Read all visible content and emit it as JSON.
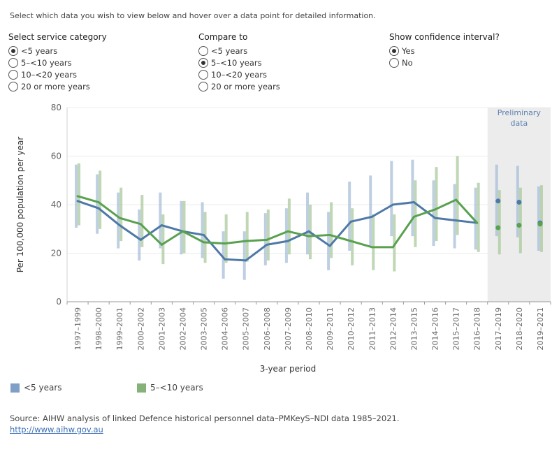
{
  "intro": "Select which data you wish to view below and hover over a data point for detailed information.",
  "controls": {
    "service": {
      "title": "Select service category",
      "options": [
        "<5 years",
        "5–<10 years",
        "10–<20 years",
        "20 or more years"
      ],
      "selected": 0
    },
    "compare": {
      "title": "Compare to",
      "options": [
        "<5 years",
        "5–<10 years",
        "10–<20 years",
        "20 or more years"
      ],
      "selected": 1
    },
    "ci": {
      "title": "Show confidence interval?",
      "options": [
        "Yes",
        "No"
      ],
      "selected": 0
    }
  },
  "legend": {
    "s1": "<5 years",
    "s2": "5–<10 years"
  },
  "source": "Source: AIHW analysis of linked Defence historical personnel data–PMKeyS–NDI data 1985–2021.",
  "link": "http://www.aihw.gov.au",
  "colors": {
    "blue": "#4e79a7",
    "green": "#59a14f",
    "blueCI": "#a8bfd8",
    "greenCI": "#a9c99b",
    "prelim": "#ececec"
  },
  "chart_data": {
    "type": "line",
    "xlabel": "3-year period",
    "ylabel": "Per 100,000 population per year",
    "ylim": [
      0,
      80
    ],
    "yticks": [
      0,
      20,
      40,
      60,
      80
    ],
    "preliminary_label": [
      "Preliminary",
      "data"
    ],
    "preliminary_from": "2017–2019",
    "categories": [
      "1997–1999",
      "1998–2000",
      "1999–2001",
      "2000–2002",
      "2001–2003",
      "2002–2004",
      "2003–2005",
      "2004–2006",
      "2005–2007",
      "2006–2008",
      "2007–2009",
      "2008–2010",
      "2009–2011",
      "2010–2012",
      "2011–2013",
      "2012–2014",
      "2013–2015",
      "2014–2016",
      "2015–2017",
      "2016–2018",
      "2017–2019",
      "2018–2020",
      "2019–2021"
    ],
    "series": [
      {
        "name": "<5 years",
        "color": "#4e79a7",
        "values": [
          41.5,
          38.5,
          31.5,
          25.5,
          31.5,
          29,
          27.5,
          17.5,
          17,
          23.5,
          25,
          29,
          23,
          33,
          35,
          40,
          41,
          34.5,
          33.5,
          32.5,
          41.5,
          41,
          32.5
        ],
        "ci_low": [
          30.5,
          28,
          22,
          17,
          22,
          19.5,
          18,
          9.5,
          9,
          15,
          16,
          19.5,
          13,
          21,
          23,
          27,
          27,
          23,
          22,
          21.5,
          27,
          26.5,
          21
        ],
        "ci_high": [
          56.5,
          52.5,
          45,
          38,
          45,
          41.5,
          41,
          29,
          29,
          36.5,
          38.5,
          45,
          37,
          49.5,
          52,
          58,
          58.5,
          50,
          48.5,
          47,
          56.5,
          56,
          47.5
        ]
      },
      {
        "name": "5–<10 years",
        "color": "#59a14f",
        "values": [
          43.5,
          41,
          34.5,
          32,
          23.5,
          29,
          24.5,
          24,
          25,
          25.5,
          29,
          27,
          27.5,
          25,
          22.5,
          22.5,
          35,
          38,
          42,
          32.5,
          30.5,
          31.5,
          32
        ],
        "ci_low": [
          31.5,
          30,
          25,
          22.5,
          15.5,
          20,
          16,
          16,
          16.5,
          17,
          19.5,
          17.5,
          18,
          15,
          13,
          12.5,
          22.5,
          25,
          27.5,
          20.5,
          19.5,
          20,
          20.5
        ],
        "ci_high": [
          57,
          54,
          47,
          44,
          36,
          41.5,
          37,
          36,
          37,
          38,
          42.5,
          40,
          41,
          38.5,
          36,
          36,
          50,
          55.5,
          60,
          49,
          46,
          47,
          48
        ]
      }
    ]
  }
}
